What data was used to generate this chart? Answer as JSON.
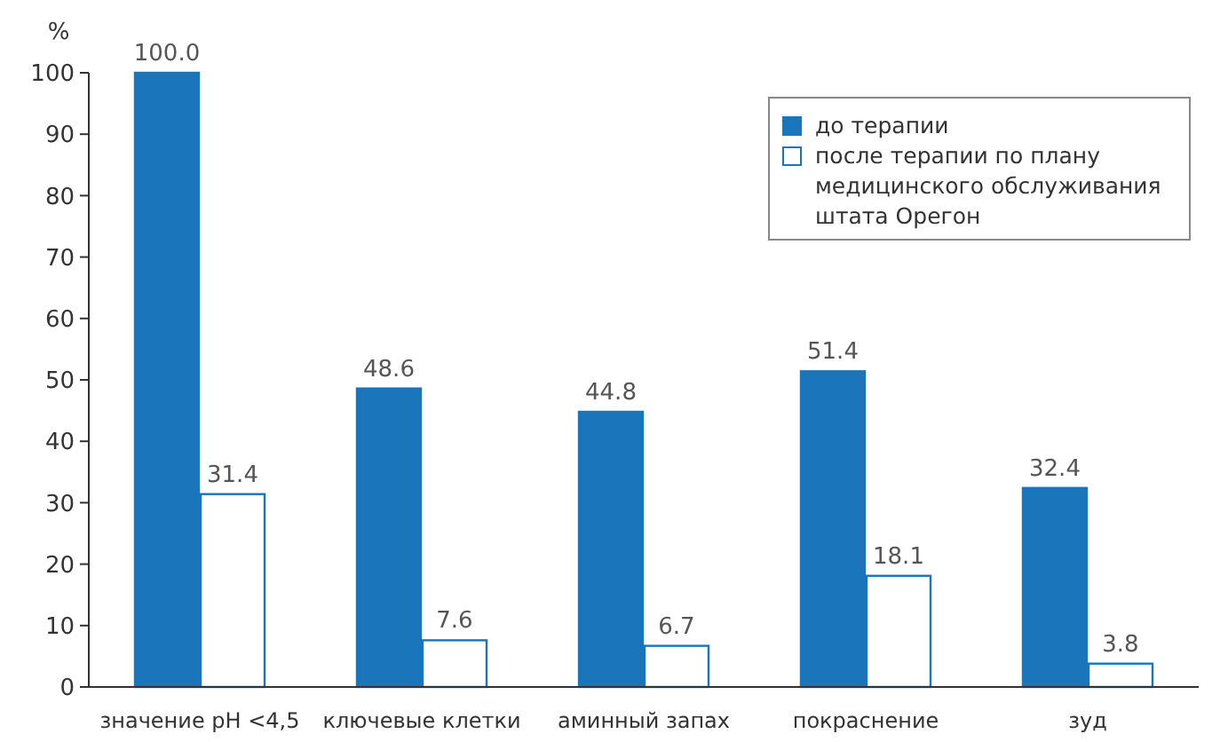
{
  "chart_data": {
    "type": "bar",
    "ylabel": "%",
    "categories": [
      "значение pH <4,5",
      "ключевые клетки",
      "аминный запах",
      "покраснение",
      "зуд"
    ],
    "series": [
      {
        "name": "до терапии",
        "color": "#1a75bb",
        "values": [
          100.0,
          48.6,
          44.8,
          51.4,
          32.4
        ],
        "value_labels": [
          "100.0",
          "48.6",
          "44.8",
          "51.4",
          "32.4"
        ]
      },
      {
        "name": "после терапии по плану медицинского обслуживания штата Орегон",
        "color": "#ffffff",
        "values": [
          31.4,
          7.6,
          6.7,
          18.1,
          3.8
        ],
        "value_labels": [
          "31.4",
          "7.6",
          "6.7",
          "18.1",
          "3.8"
        ]
      }
    ],
    "ylim": [
      0,
      100
    ],
    "yticks": [
      0,
      10,
      20,
      30,
      40,
      50,
      60,
      70,
      80,
      90,
      100
    ],
    "grid": false,
    "legend": "top right"
  }
}
